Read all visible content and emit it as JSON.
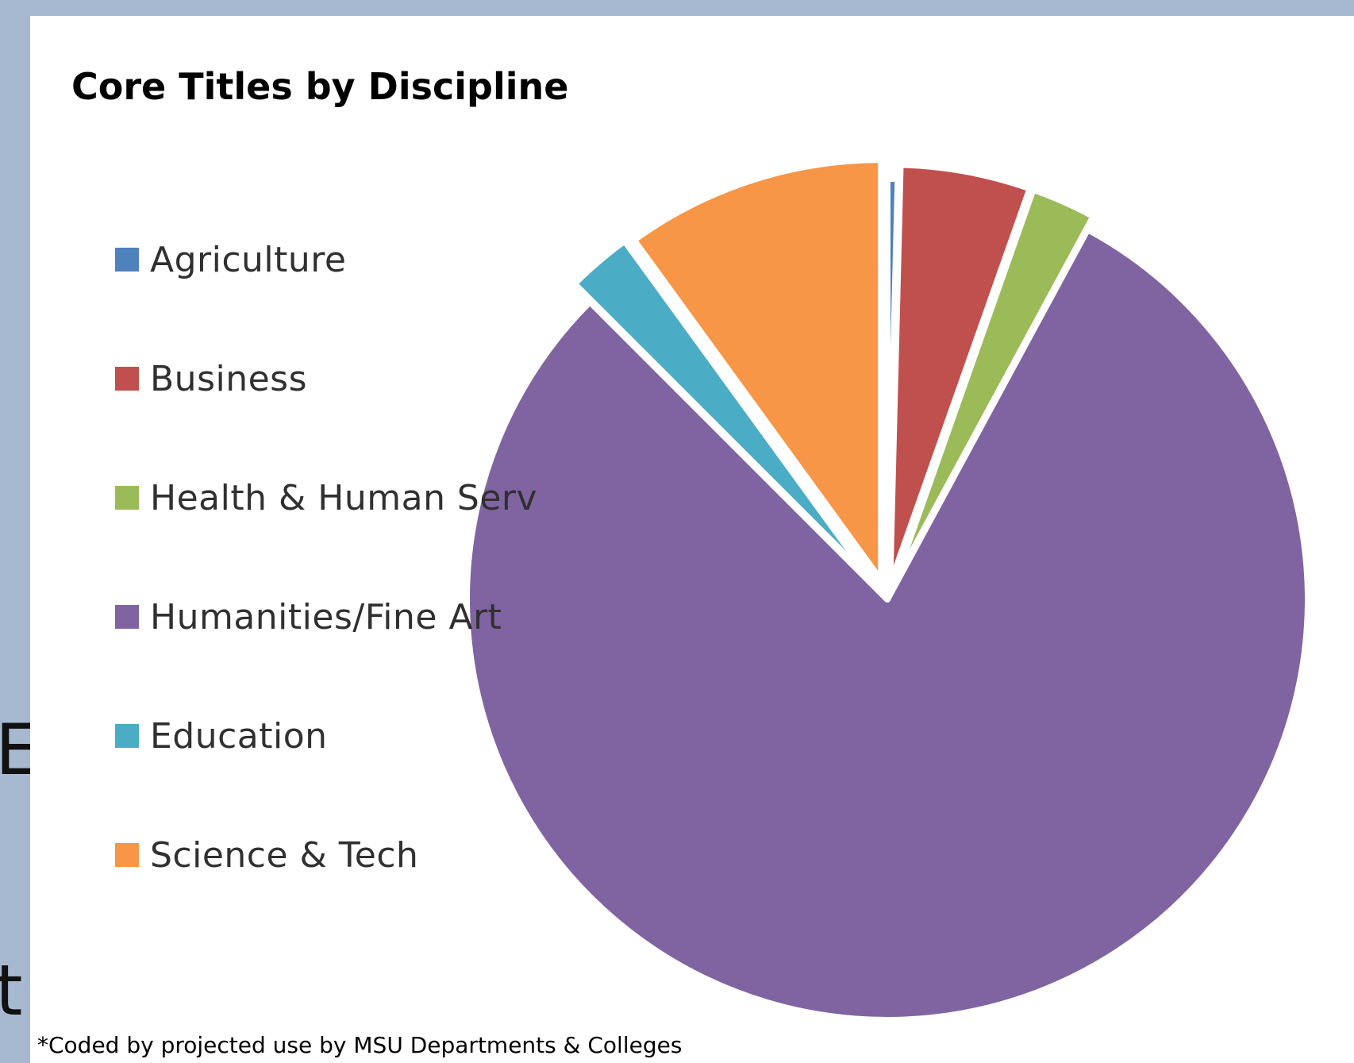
{
  "side_glyphs": [
    "E",
    "t"
  ],
  "chart_data": {
    "type": "pie",
    "title": "Core Titles by Discipline",
    "exploded": true,
    "slices": [
      {
        "label": "Agriculture",
        "value": 0.4,
        "color": "#4f81bd"
      },
      {
        "label": "Business",
        "value": 5.0,
        "color": "#c0504d"
      },
      {
        "label": "Health & Human Serv",
        "value": 2.5,
        "color": "#9bbb59"
      },
      {
        "label": "Humanities/Fine Art",
        "value": 79.6,
        "color": "#8064a2"
      },
      {
        "label": "Education",
        "value": 2.5,
        "color": "#4bacc6"
      },
      {
        "label": "Science & Tech",
        "value": 10.0,
        "color": "#f79646"
      }
    ],
    "legend_position": "left"
  },
  "footnote": "*Coded by projected use by MSU Departments & Colleges"
}
